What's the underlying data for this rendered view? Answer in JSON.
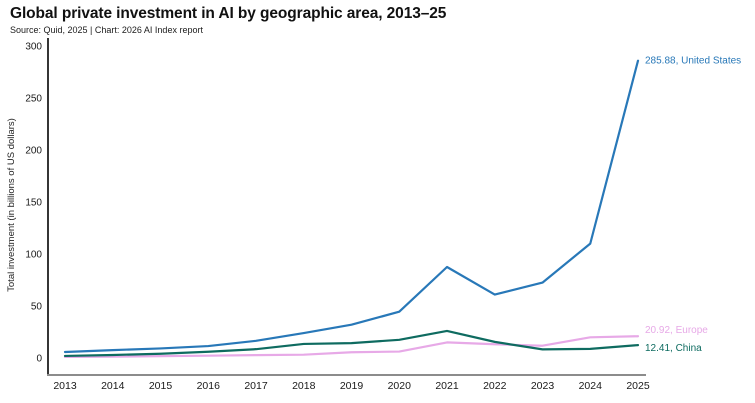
{
  "header": {
    "title": "Global private investment in AI by geographic area, 2013–25",
    "subtitle": "Source: Quid, 2025 | Chart: 2026 AI Index report"
  },
  "axes": {
    "y_title": "Total investment (in billions of US dollars)",
    "y_ticks": [
      0,
      50,
      100,
      150,
      200,
      250,
      300
    ],
    "x_ticks": [
      "2013",
      "2014",
      "2015",
      "2016",
      "2017",
      "2018",
      "2019",
      "2020",
      "2021",
      "2022",
      "2023",
      "2024",
      "2025"
    ]
  },
  "chart_data": {
    "type": "line",
    "title": "Global private investment in AI by geographic area, 2013–25",
    "subtitle": "Source: Quid, 2025 | Chart: 2026 AI Index report",
    "x": [
      2013,
      2014,
      2015,
      2016,
      2017,
      2018,
      2019,
      2020,
      2021,
      2022,
      2023,
      2024,
      2025
    ],
    "series": [
      {
        "name": "United States",
        "color": "#2878b8",
        "values": [
          5.8,
          7.6,
          9.2,
          11.5,
          16.5,
          24.0,
          32.0,
          44.5,
          87.5,
          61.0,
          72.5,
          110.0,
          285.88
        ],
        "end_label": "285.88, United States"
      },
      {
        "name": "Europe",
        "color": "#e7a9e7",
        "values": [
          1.0,
          1.3,
          1.8,
          2.2,
          2.8,
          3.2,
          5.5,
          6.2,
          15.0,
          13.2,
          11.8,
          19.9,
          20.92
        ],
        "end_label": "20.92, Europe"
      },
      {
        "name": "China",
        "color": "#0e6b60",
        "values": [
          2.0,
          2.9,
          4.1,
          6.0,
          8.5,
          13.5,
          14.3,
          17.5,
          26.0,
          15.5,
          8.3,
          8.8,
          12.41
        ],
        "end_label": "12.41, China"
      }
    ],
    "ylabel": "Total investment (in billions of US dollars)",
    "xlabel": "",
    "ylim": [
      0,
      300
    ],
    "grid": false,
    "legend_position": "end-of-line-labels"
  },
  "colors": {
    "united_states": "#2878b8",
    "europe": "#e7a9e7",
    "china": "#0e6b60",
    "y_axis_line": "#1f1f1f",
    "x_axis_line": "#8c8c8c",
    "text": "#111111"
  }
}
